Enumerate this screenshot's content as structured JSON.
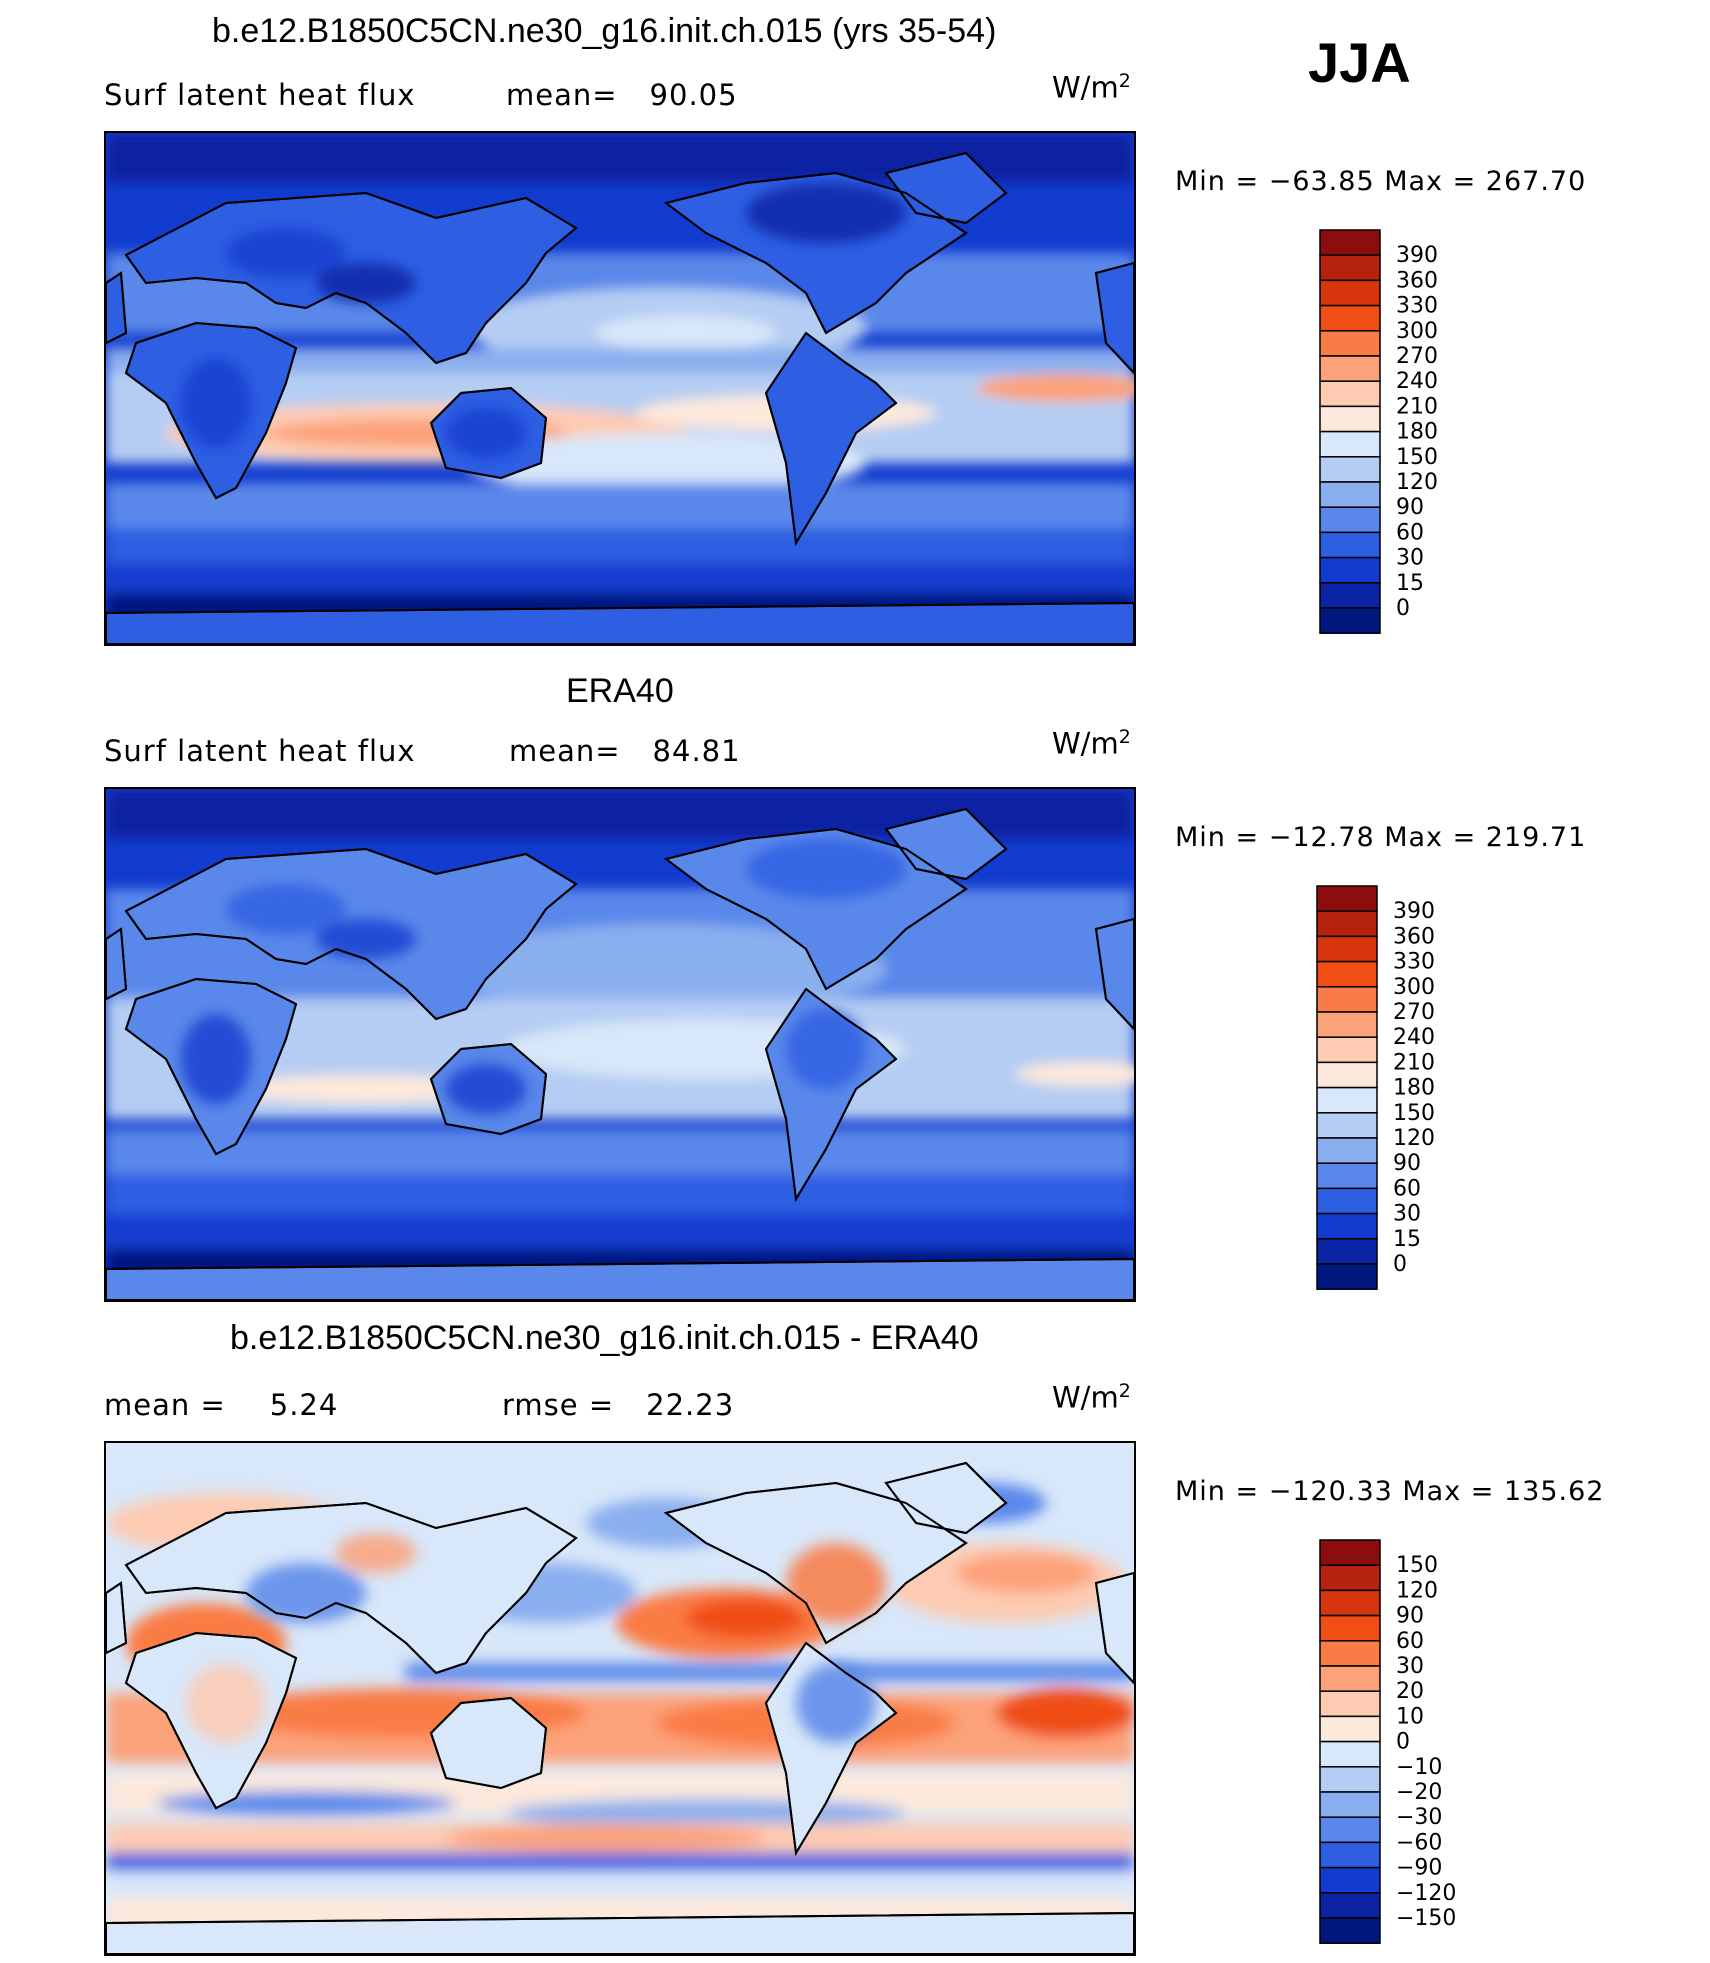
{
  "season": "JJA",
  "units_main": "W/m",
  "units_sup": "2",
  "panels": [
    {
      "title": "b.e12.B1850C5CN.ne30_g16.init.ch.015 (yrs 35-54)",
      "left_label": "Surf  latent  heat  flux",
      "mid_label": "mean=",
      "mid_value": "90.05",
      "minmax": "Min  =  −63.85  Max  =  267.70",
      "cbar_labels": [
        "390",
        "360",
        "330",
        "300",
        "270",
        "240",
        "210",
        "180",
        "150",
        "120",
        "90",
        "60",
        "30",
        "15",
        "0"
      ],
      "cbar_colors": [
        "#8b0d0d",
        "#b5230f",
        "#d8350f",
        "#f04d17",
        "#fa7b45",
        "#fca27a",
        "#fdcbb2",
        "#fde9dc",
        "#d8e7f9",
        "#b5cdf3",
        "#8aafef",
        "#5a88ea",
        "#2e5fe3",
        "#123ccf",
        "#0a24a3",
        "#001780"
      ]
    },
    {
      "title": "ERA40",
      "left_label": "Surf  latent  heat  flux",
      "mid_label": "mean=",
      "mid_value": "84.81",
      "minmax": "Min  =  −12.78  Max  =  219.71",
      "cbar_labels": [
        "390",
        "360",
        "330",
        "300",
        "270",
        "240",
        "210",
        "180",
        "150",
        "120",
        "90",
        "60",
        "30",
        "15",
        "0"
      ],
      "cbar_colors": [
        "#8b0d0d",
        "#b5230f",
        "#d8350f",
        "#f04d17",
        "#fa7b45",
        "#fca27a",
        "#fdcbb2",
        "#fde9dc",
        "#d8e7f9",
        "#b5cdf3",
        "#8aafef",
        "#5a88ea",
        "#2e5fe3",
        "#123ccf",
        "#0a24a3",
        "#001780"
      ]
    },
    {
      "title": "b.e12.B1850C5CN.ne30_g16.init.ch.015 - ERA40",
      "left_label": "mean  =",
      "left_value": "5.24",
      "mid_label": "rmse  =",
      "mid_value": "22.23",
      "minmax": "Min  =  −120.33  Max  =  135.62",
      "cbar_labels": [
        "150",
        "120",
        "90",
        "60",
        "30",
        "20",
        "10",
        "0",
        "−10",
        "−20",
        "−30",
        "−60",
        "−90",
        "−120",
        "−150"
      ],
      "cbar_colors": [
        "#8b0d0d",
        "#b5230f",
        "#d8350f",
        "#f04d17",
        "#fa7b45",
        "#fca27a",
        "#fdcbb2",
        "#fde9dc",
        "#d8e7f9",
        "#b5cdf3",
        "#8aafef",
        "#5a88ea",
        "#2e5fe3",
        "#123ccf",
        "#0a24a3",
        "#001780"
      ]
    }
  ]
}
